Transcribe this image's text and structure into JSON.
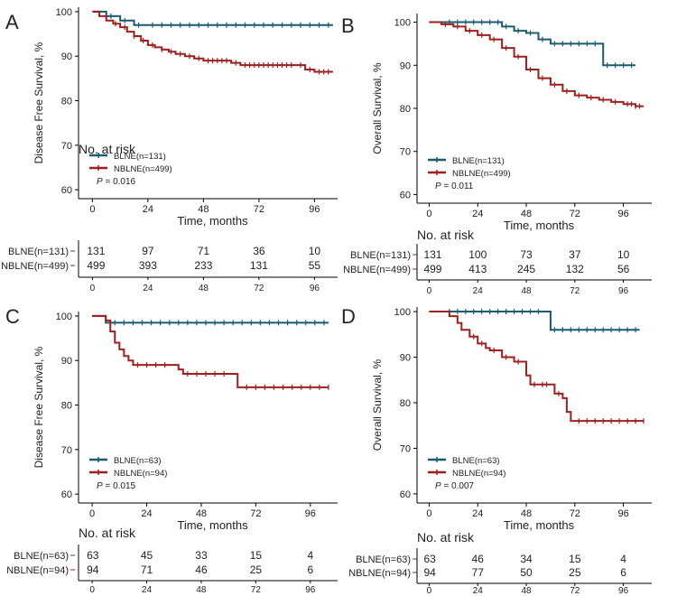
{
  "colors": {
    "blne": "#1a5c70",
    "nblne": "#a01e1e"
  },
  "chart_data": [
    {
      "panel": "A",
      "type": "line",
      "ylabel": "Disease Free Survival, %",
      "xlabel": "Time, months",
      "ylim": [
        58,
        101
      ],
      "xlim": [
        -6,
        106
      ],
      "yticks": [
        60,
        70,
        80,
        90,
        100
      ],
      "xticks": [
        0,
        24,
        48,
        72,
        96
      ],
      "series": [
        {
          "name": "BLNE(n=131)",
          "key": "blne",
          "steps": [
            [
              0,
              100
            ],
            [
              6,
              99
            ],
            [
              12,
              98
            ],
            [
              18,
              97
            ],
            [
              104,
              97
            ]
          ],
          "censors": [
            8,
            14,
            20,
            26,
            30,
            34,
            38,
            42,
            46,
            50,
            54,
            58,
            62,
            66,
            70,
            74,
            78,
            82,
            86,
            90,
            94,
            98,
            102
          ]
        },
        {
          "name": "NBLNE(n=499)",
          "key": "nblne",
          "steps": [
            [
              0,
              100
            ],
            [
              3,
              99
            ],
            [
              6,
              98
            ],
            [
              9,
              97.3
            ],
            [
              12,
              96.5
            ],
            [
              15,
              95.5
            ],
            [
              18,
              94.5
            ],
            [
              21,
              93.5
            ],
            [
              24,
              92.5
            ],
            [
              27,
              92
            ],
            [
              30,
              91.5
            ],
            [
              33,
              91
            ],
            [
              36,
              90.5
            ],
            [
              40,
              90
            ],
            [
              44,
              89.5
            ],
            [
              48,
              89
            ],
            [
              56,
              89
            ],
            [
              60,
              88.5
            ],
            [
              64,
              88
            ],
            [
              88,
              88
            ],
            [
              92,
              87
            ],
            [
              96,
              86.5
            ],
            [
              104,
              86.5
            ]
          ],
          "censors": [
            10,
            14,
            18,
            22,
            26,
            30,
            34,
            38,
            42,
            46,
            50,
            52,
            54,
            56,
            58,
            62,
            66,
            68,
            70,
            72,
            74,
            76,
            78,
            80,
            82,
            84,
            86,
            90,
            94,
            98,
            100,
            102
          ]
        }
      ],
      "p_label": "P",
      "p_value": " = 0.016",
      "risk": {
        "title": "No. at risk",
        "rows": [
          {
            "label": "BLNE(n=131)",
            "key": "blne",
            "values": [
              "131",
              "97",
              "71",
              "36",
              "10"
            ]
          },
          {
            "label": "NBLNE(n=499)",
            "key": "nblne",
            "values": [
              "499",
              "393",
              "233",
              "131",
              "55"
            ]
          }
        ]
      }
    },
    {
      "panel": "B",
      "type": "line",
      "ylabel": "Overall Survival, %",
      "xlabel": "Time, months",
      "ylim": [
        58,
        102
      ],
      "xlim": [
        -6,
        110
      ],
      "yticks": [
        60,
        70,
        80,
        90,
        100
      ],
      "xticks": [
        0,
        24,
        48,
        72,
        96
      ],
      "series": [
        {
          "name": "BLNE(n=131)",
          "key": "blne",
          "steps": [
            [
              0,
              100
            ],
            [
              36,
              99
            ],
            [
              42,
              98
            ],
            [
              48,
              97.5
            ],
            [
              54,
              96
            ],
            [
              60,
              95
            ],
            [
              84,
              95
            ],
            [
              86,
              90
            ],
            [
              102,
              90
            ]
          ],
          "censors": [
            10,
            14,
            18,
            22,
            26,
            30,
            34,
            38,
            44,
            50,
            56,
            62,
            66,
            70,
            74,
            78,
            82,
            88,
            92,
            96,
            100
          ]
        },
        {
          "name": "NBLNE(n=499)",
          "key": "nblne",
          "steps": [
            [
              0,
              100
            ],
            [
              6,
              99.5
            ],
            [
              12,
              99
            ],
            [
              18,
              98
            ],
            [
              24,
              97
            ],
            [
              30,
              96
            ],
            [
              36,
              94
            ],
            [
              42,
              92
            ],
            [
              48,
              89
            ],
            [
              54,
              87
            ],
            [
              60,
              85.5
            ],
            [
              66,
              84
            ],
            [
              72,
              83
            ],
            [
              78,
              82.5
            ],
            [
              84,
              82
            ],
            [
              90,
              81.5
            ],
            [
              96,
              81
            ],
            [
              102,
              80.5
            ],
            [
              106,
              80.5
            ]
          ],
          "censors": [
            8,
            14,
            20,
            26,
            32,
            38,
            44,
            50,
            56,
            62,
            68,
            74,
            80,
            86,
            92,
            98,
            100,
            102,
            104
          ]
        }
      ],
      "p_label": "P",
      "p_value": " = 0.011",
      "risk": {
        "title": "No. at risk",
        "rows": [
          {
            "label": "BLNE(n=131)",
            "key": "blne",
            "values": [
              "131",
              "100",
              "73",
              "37",
              "10"
            ]
          },
          {
            "label": "NBLNE(n=499)",
            "key": "nblne",
            "values": [
              "499",
              "413",
              "245",
              "132",
              "56"
            ]
          }
        ]
      }
    },
    {
      "panel": "C",
      "type": "line",
      "ylabel": "Disease Free Survival, %",
      "xlabel": "Time, months",
      "ylim": [
        58,
        101
      ],
      "xlim": [
        -6,
        108
      ],
      "yticks": [
        60,
        70,
        80,
        90,
        100
      ],
      "xticks": [
        0,
        24,
        48,
        72,
        96
      ],
      "series": [
        {
          "name": "BLNE(n=63)",
          "key": "blne",
          "steps": [
            [
              0,
              100
            ],
            [
              6,
              98.5
            ],
            [
              104,
              98.5
            ]
          ],
          "censors": [
            10,
            14,
            18,
            22,
            26,
            30,
            34,
            38,
            42,
            46,
            50,
            54,
            58,
            62,
            66,
            70,
            74,
            78,
            82,
            86,
            90,
            94,
            98,
            102
          ]
        },
        {
          "name": "NBLNE(n=94)",
          "key": "nblne",
          "steps": [
            [
              0,
              100
            ],
            [
              6,
              99
            ],
            [
              8,
              96.5
            ],
            [
              10,
              94
            ],
            [
              12,
              92.5
            ],
            [
              14,
              91
            ],
            [
              16,
              90
            ],
            [
              18,
              89
            ],
            [
              36,
              89
            ],
            [
              38,
              88
            ],
            [
              40,
              87
            ],
            [
              60,
              87
            ],
            [
              64,
              84
            ],
            [
              104,
              84
            ]
          ],
          "censors": [
            20,
            24,
            28,
            32,
            42,
            46,
            50,
            54,
            58,
            68,
            72,
            76,
            80,
            84,
            88,
            92,
            96,
            100,
            104
          ]
        }
      ],
      "p_label": "P",
      "p_value": " = 0.015",
      "risk": {
        "title": "No. at risk",
        "rows": [
          {
            "label": "BLNE(n=63)",
            "key": "blne",
            "values": [
              "63",
              "45",
              "33",
              "15",
              "4"
            ]
          },
          {
            "label": "NBLNE(n=94)",
            "key": "nblne",
            "values": [
              "94",
              "71",
              "46",
              "25",
              "6"
            ]
          }
        ]
      }
    },
    {
      "panel": "D",
      "type": "line",
      "ylabel": "Overall Survival, %",
      "xlabel": "Time, months",
      "ylim": [
        58,
        101
      ],
      "xlim": [
        -6,
        110
      ],
      "yticks": [
        60,
        70,
        80,
        90,
        100
      ],
      "xticks": [
        0,
        24,
        48,
        72,
        96
      ],
      "series": [
        {
          "name": "BLNE(n=63)",
          "key": "blne",
          "steps": [
            [
              0,
              100
            ],
            [
              58,
              100
            ],
            [
              60,
              96
            ],
            [
              104,
              96
            ]
          ],
          "censors": [
            10,
            14,
            18,
            22,
            26,
            30,
            34,
            38,
            42,
            46,
            50,
            54,
            62,
            66,
            70,
            74,
            78,
            82,
            86,
            90,
            94,
            98,
            102
          ]
        },
        {
          "name": "NBLNE(n=94)",
          "key": "nblne",
          "steps": [
            [
              0,
              100
            ],
            [
              10,
              99
            ],
            [
              14,
              97.5
            ],
            [
              16,
              96
            ],
            [
              20,
              94.5
            ],
            [
              24,
              93
            ],
            [
              28,
              92
            ],
            [
              30,
              91.5
            ],
            [
              36,
              90
            ],
            [
              42,
              89
            ],
            [
              48,
              86
            ],
            [
              50,
              84
            ],
            [
              60,
              84
            ],
            [
              62,
              82
            ],
            [
              66,
              81
            ],
            [
              68,
              78
            ],
            [
              70,
              76
            ],
            [
              106,
              76
            ]
          ],
          "censors": [
            22,
            26,
            32,
            38,
            44,
            52,
            56,
            58,
            64,
            74,
            78,
            82,
            86,
            90,
            94,
            98,
            102,
            106
          ]
        }
      ],
      "p_label": "P",
      "p_value": " = 0.007",
      "risk": {
        "title": "No. at risk",
        "rows": [
          {
            "label": "BLNE(n=63)",
            "key": "blne",
            "values": [
              "63",
              "46",
              "34",
              "15",
              "4"
            ]
          },
          {
            "label": "NBLNE(n=94)",
            "key": "nblne",
            "values": [
              "94",
              "77",
              "50",
              "25",
              "6"
            ]
          }
        ]
      }
    }
  ]
}
